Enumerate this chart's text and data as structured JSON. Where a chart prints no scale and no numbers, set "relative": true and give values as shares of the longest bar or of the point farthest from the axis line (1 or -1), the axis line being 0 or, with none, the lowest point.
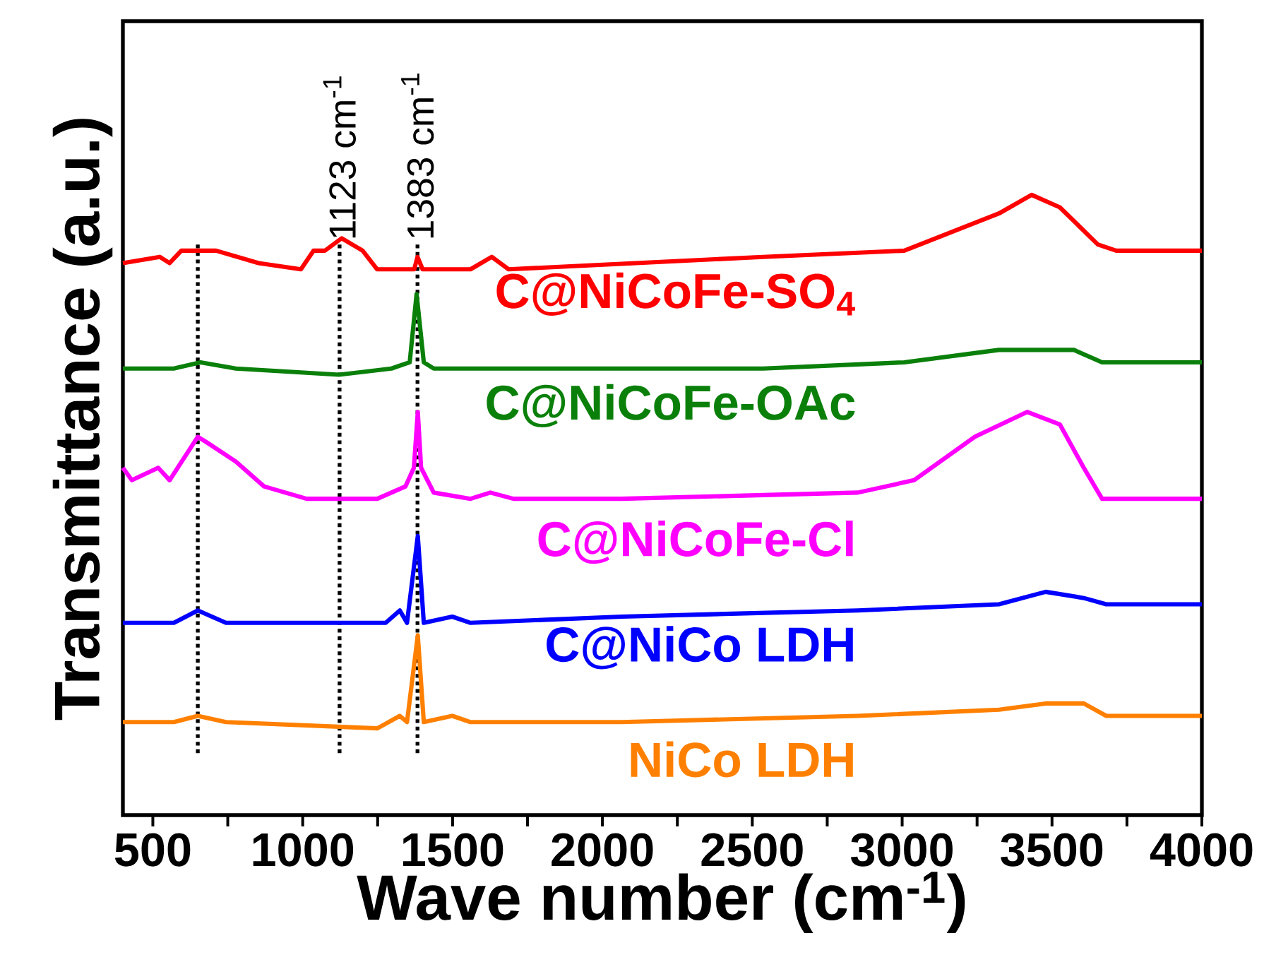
{
  "chart_data": {
    "type": "line",
    "relative": true,
    "xlabel": "Wave number (cm$^{-1}$)",
    "ylabel": "Transmittance (a.u.)",
    "xlim": [
      400,
      4000
    ],
    "xticks": [
      500,
      {
        "value": 750,
        "label": null
      },
      1000,
      {
        "value": 1250,
        "label": null
      },
      1500,
      {
        "value": 1750,
        "label": null
      },
      2000,
      {
        "value": 2250,
        "label": null
      },
      2500,
      {
        "value": 2750,
        "label": null
      },
      3000,
      {
        "value": 3250,
        "label": null
      },
      3500,
      {
        "value": 3750,
        "label": null
      },
      4000
    ],
    "tick_labels": "x",
    "line_style": "solid",
    "marker": "none",
    "series": [
      {
        "name": "C@NiCoFe-SO$_{4}$",
        "color": "#ff0000",
        "x": [
          400,
          523,
          556,
          595,
          650,
          711,
          853,
          994,
          1036,
          1074,
          1130,
          1200,
          1248,
          1372,
          1383,
          1400,
          1560,
          1631,
          1687,
          2111,
          2536,
          3007,
          3323,
          3432,
          3526,
          3653,
          3714,
          4000
        ],
        "values": [
          0.89,
          0.9,
          0.89,
          0.91,
          0.91,
          0.91,
          0.89,
          0.88,
          0.91,
          0.91,
          0.93,
          0.91,
          0.88,
          0.88,
          0.9,
          0.88,
          0.88,
          0.9,
          0.88,
          0.89,
          0.9,
          0.91,
          0.97,
          1.0,
          0.98,
          0.92,
          0.91,
          0.91
        ]
      },
      {
        "name": "C@NiCoFe-OAc",
        "color": "#0a800a",
        "x": [
          400,
          570,
          659,
          777,
          1121,
          1296,
          1357,
          1380,
          1404,
          1437,
          1560,
          1640,
          2064,
          2536,
          3007,
          3323,
          3432,
          3573,
          3667,
          4000
        ],
        "values": [
          0.72,
          0.72,
          0.73,
          0.72,
          0.71,
          0.72,
          0.73,
          0.84,
          0.73,
          0.72,
          0.72,
          0.72,
          0.72,
          0.72,
          0.73,
          0.75,
          0.75,
          0.75,
          0.73,
          0.73
        ]
      },
      {
        "name": "C@NiCoFe-Cl",
        "color": "#ff00ff",
        "x": [
          400,
          430,
          518,
          556,
          650,
          683,
          777,
          871,
          1013,
          1249,
          1343,
          1371,
          1384,
          1395,
          1437,
          1560,
          1626,
          1703,
          2064,
          2852,
          3040,
          3243,
          3417,
          3526,
          3606,
          3667,
          4000
        ],
        "values": [
          0.56,
          0.54,
          0.56,
          0.54,
          0.61,
          0.6,
          0.57,
          0.53,
          0.51,
          0.51,
          0.53,
          0.56,
          0.65,
          0.56,
          0.52,
          0.51,
          0.52,
          0.51,
          0.51,
          0.52,
          0.54,
          0.61,
          0.65,
          0.63,
          0.56,
          0.51,
          0.51
        ]
      },
      {
        "name": "C@NiCo LDH",
        "color": "#0000ff",
        "x": [
          400,
          570,
          650,
          744,
          994,
          1277,
          1324,
          1348,
          1384,
          1404,
          1499,
          1560,
          2064,
          2852,
          3323,
          3479,
          3606,
          3681,
          4000
        ],
        "values": [
          0.31,
          0.31,
          0.33,
          0.31,
          0.31,
          0.31,
          0.33,
          0.31,
          0.45,
          0.31,
          0.32,
          0.31,
          0.32,
          0.33,
          0.34,
          0.36,
          0.35,
          0.34,
          0.34
        ]
      },
      {
        "name": "NiCo LDH",
        "color": "#ff8000",
        "x": [
          400,
          570,
          650,
          744,
          1249,
          1324,
          1348,
          1384,
          1404,
          1499,
          1560,
          2064,
          2852,
          3323,
          3479,
          3606,
          3681,
          4000
        ],
        "values": [
          0.15,
          0.15,
          0.16,
          0.15,
          0.14,
          0.16,
          0.15,
          0.29,
          0.15,
          0.16,
          0.15,
          0.15,
          0.16,
          0.17,
          0.18,
          0.18,
          0.16,
          0.16
        ]
      }
    ],
    "ref_lines": [
      {
        "axis": "x",
        "value": 650,
        "label": null,
        "color": "#000000",
        "line_style": "dotted"
      },
      {
        "axis": "x",
        "value": 1123,
        "label": "1123 cm$^{-1}$",
        "color": "#000000",
        "line_style": "dotted"
      },
      {
        "axis": "x",
        "value": 1383,
        "label": "1383 cm$^{-1}$",
        "color": "#000000",
        "line_style": "dotted"
      }
    ]
  }
}
